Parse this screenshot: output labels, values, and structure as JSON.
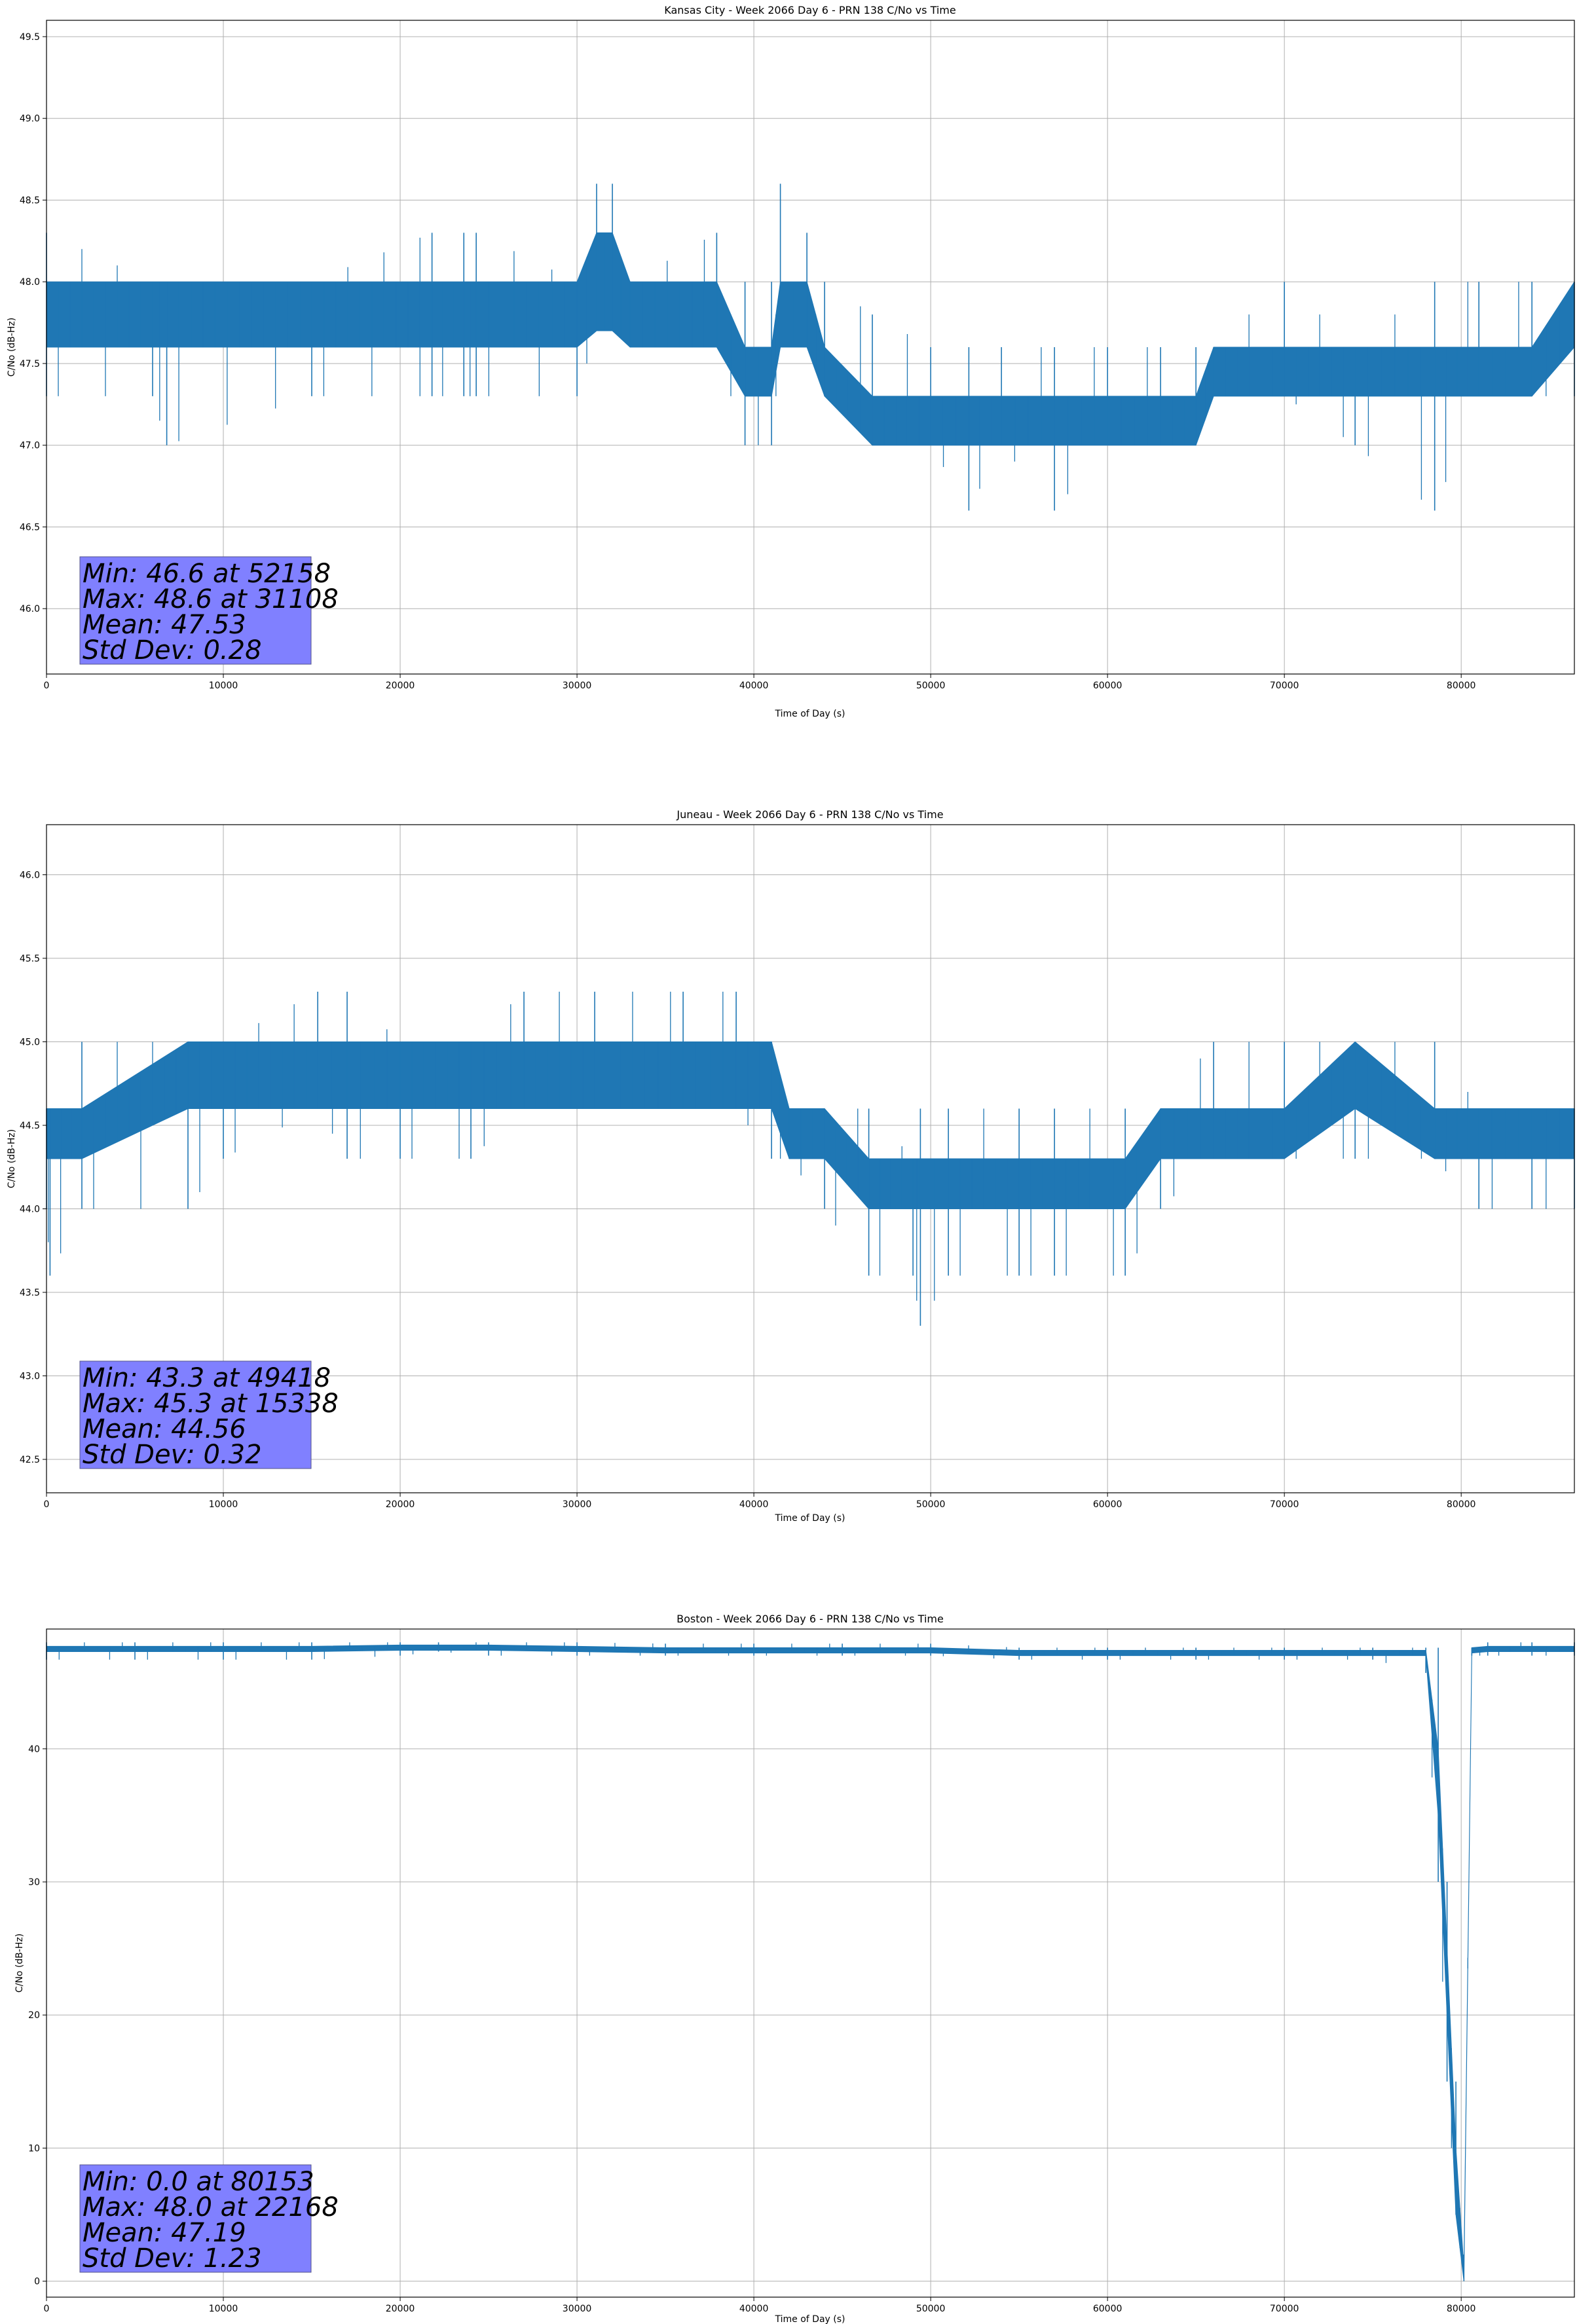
{
  "figure": {
    "line_color": "#1f77b4",
    "stats_box_color": "#8080ff",
    "grid": true
  },
  "chart_data": [
    {
      "type": "line",
      "title": "Kansas City - Week 2066 Day 6 - PRN 138 C/No vs Time",
      "xlabel": "Time of Day (s)",
      "ylabel": "C/No (dB-Hz)",
      "xlim": [
        0,
        86400
      ],
      "ylim": [
        45.6,
        49.6
      ],
      "xticks": [
        0,
        10000,
        20000,
        30000,
        40000,
        50000,
        60000,
        70000,
        80000
      ],
      "yticks": [
        46.0,
        46.5,
        47.0,
        47.5,
        48.0,
        48.5,
        49.0,
        49.5
      ],
      "ytick_labels": [
        "46.0",
        "46.5",
        "47.0",
        "47.5",
        "48.0",
        "48.5",
        "49.0",
        "49.5"
      ],
      "series": [
        {
          "x": [
            0,
            6000,
            6800,
            15000,
            21800,
            23600,
            24300,
            30000,
            31108,
            32000,
            33000,
            37900,
            39500,
            41000,
            41500,
            43000,
            44000,
            46700,
            50000,
            52158,
            54000,
            57000,
            60000,
            63000,
            65000,
            66000,
            70000,
            74000,
            78500,
            81000,
            84000,
            86400
          ],
          "y_low": [
            47.3,
            47.3,
            47.0,
            47.3,
            47.3,
            47.3,
            47.3,
            47.3,
            47.7,
            47.7,
            47.6,
            47.6,
            47.0,
            47.0,
            47.6,
            47.6,
            47.3,
            47.0,
            47.0,
            46.6,
            47.0,
            46.6,
            47.0,
            47.0,
            47.0,
            47.3,
            47.3,
            47.0,
            46.6,
            47.3,
            47.3,
            47.3
          ],
          "y_high": [
            48.3,
            48.0,
            48.0,
            48.0,
            48.3,
            48.3,
            48.3,
            48.0,
            48.6,
            48.6,
            48.0,
            48.3,
            48.0,
            48.0,
            48.6,
            48.3,
            48.0,
            47.8,
            47.6,
            47.6,
            47.6,
            47.6,
            47.6,
            47.6,
            47.6,
            47.6,
            48.0,
            47.6,
            48.0,
            48.0,
            48.0,
            48.0
          ],
          "y_band": [
            [
              47.6,
              48.0
            ],
            [
              47.6,
              48.0
            ],
            [
              47.6,
              48.0
            ],
            [
              47.6,
              48.0
            ],
            [
              47.6,
              48.0
            ],
            [
              47.6,
              48.0
            ],
            [
              47.6,
              48.0
            ],
            [
              47.6,
              48.0
            ],
            [
              47.7,
              48.3
            ],
            [
              47.7,
              48.3
            ],
            [
              47.6,
              48.0
            ],
            [
              47.6,
              48.0
            ],
            [
              47.3,
              47.6
            ],
            [
              47.3,
              47.6
            ],
            [
              47.6,
              48.0
            ],
            [
              47.6,
              48.0
            ],
            [
              47.3,
              47.6
            ],
            [
              47.0,
              47.3
            ],
            [
              47.0,
              47.3
            ],
            [
              47.0,
              47.3
            ],
            [
              47.0,
              47.3
            ],
            [
              47.0,
              47.3
            ],
            [
              47.0,
              47.3
            ],
            [
              47.0,
              47.3
            ],
            [
              47.0,
              47.3
            ],
            [
              47.3,
              47.6
            ],
            [
              47.3,
              47.6
            ],
            [
              47.3,
              47.6
            ],
            [
              47.3,
              47.6
            ],
            [
              47.3,
              47.6
            ],
            [
              47.3,
              47.6
            ],
            [
              47.6,
              48.0
            ]
          ]
        }
      ],
      "stats": [
        "Min: 46.6 at 52158",
        "Max: 48.6 at 31108",
        "Mean: 47.53",
        "Std Dev: 0.28"
      ]
    },
    {
      "type": "line",
      "title": "Juneau - Week 2066 Day 6 - PRN 138 C/No vs Time",
      "xlabel": "Time of Day (s)",
      "ylabel": "C/No (dB-Hz)",
      "xlim": [
        0,
        86400
      ],
      "ylim": [
        42.3,
        46.3
      ],
      "xticks": [
        0,
        10000,
        20000,
        30000,
        40000,
        50000,
        60000,
        70000,
        80000
      ],
      "yticks": [
        42.5,
        43.0,
        43.5,
        44.0,
        44.5,
        45.0,
        45.5,
        46.0
      ],
      "ytick_labels": [
        "42.5",
        "43.0",
        "43.5",
        "44.0",
        "44.5",
        "45.0",
        "45.5",
        "46.0"
      ],
      "series": [
        {
          "x": [
            0,
            200,
            2000,
            8000,
            10000,
            15338,
            17000,
            20000,
            24000,
            27000,
            31000,
            36000,
            39000,
            41000,
            42000,
            44000,
            46500,
            49000,
            49418,
            51000,
            55000,
            57000,
            61000,
            63000,
            66000,
            70000,
            74000,
            78500,
            81000,
            84000,
            86400
          ],
          "y_low": [
            44.0,
            43.6,
            44.0,
            44.0,
            44.3,
            44.6,
            44.3,
            44.3,
            44.3,
            44.6,
            44.6,
            44.6,
            44.6,
            44.3,
            44.3,
            44.0,
            43.6,
            43.6,
            43.3,
            43.6,
            43.6,
            43.6,
            43.6,
            44.0,
            44.3,
            44.3,
            44.3,
            44.3,
            44.0,
            44.0,
            44.0
          ],
          "y_high": [
            44.6,
            44.6,
            45.0,
            45.0,
            45.0,
            45.3,
            45.3,
            45.0,
            45.0,
            45.3,
            45.3,
            45.3,
            45.3,
            45.0,
            44.6,
            44.6,
            44.6,
            44.3,
            44.6,
            44.6,
            44.6,
            44.6,
            44.6,
            44.6,
            45.0,
            45.0,
            45.0,
            45.0,
            44.6,
            44.6,
            44.6
          ],
          "y_band": [
            [
              44.3,
              44.6
            ],
            [
              44.3,
              44.6
            ],
            [
              44.3,
              44.6
            ],
            [
              44.6,
              45.0
            ],
            [
              44.6,
              45.0
            ],
            [
              44.6,
              45.0
            ],
            [
              44.6,
              45.0
            ],
            [
              44.6,
              45.0
            ],
            [
              44.6,
              45.0
            ],
            [
              44.6,
              45.0
            ],
            [
              44.6,
              45.0
            ],
            [
              44.6,
              45.0
            ],
            [
              44.6,
              45.0
            ],
            [
              44.6,
              45.0
            ],
            [
              44.3,
              44.6
            ],
            [
              44.3,
              44.6
            ],
            [
              44.0,
              44.3
            ],
            [
              44.0,
              44.3
            ],
            [
              44.0,
              44.3
            ],
            [
              44.0,
              44.3
            ],
            [
              44.0,
              44.3
            ],
            [
              44.0,
              44.3
            ],
            [
              44.0,
              44.3
            ],
            [
              44.3,
              44.6
            ],
            [
              44.3,
              44.6
            ],
            [
              44.3,
              44.6
            ],
            [
              44.6,
              45.0
            ],
            [
              44.3,
              44.6
            ],
            [
              44.3,
              44.6
            ],
            [
              44.3,
              44.6
            ],
            [
              44.3,
              44.6
            ]
          ]
        }
      ],
      "stats": [
        "Min: 43.3 at 49418",
        "Max: 45.3 at 15338",
        "Mean: 44.56",
        "Std Dev: 0.32"
      ]
    },
    {
      "type": "line",
      "title": "Boston - Week 2066 Day 6 - PRN 138 C/No vs Time",
      "xlabel": "Time of Day (s)",
      "ylabel": "C/No (dB-Hz)",
      "xlim": [
        0,
        86400
      ],
      "ylim": [
        -1.2,
        49.0
      ],
      "xticks": [
        0,
        10000,
        20000,
        30000,
        40000,
        50000,
        60000,
        70000,
        80000
      ],
      "yticks": [
        0,
        10,
        20,
        30,
        40
      ],
      "ytick_labels": [
        "0",
        "10",
        "20",
        "30",
        "40"
      ],
      "series": [
        {
          "x": [
            0,
            5000,
            10000,
            15000,
            20000,
            22168,
            25000,
            30000,
            35000,
            40000,
            45000,
            50000,
            55000,
            60000,
            65000,
            70000,
            75000,
            78000,
            78700,
            79200,
            79700,
            80153,
            80600,
            81500,
            84000,
            86400
          ],
          "y_low": [
            46.7,
            46.7,
            46.7,
            46.7,
            47.0,
            47.3,
            47.0,
            47.0,
            47.0,
            47.0,
            47.0,
            47.0,
            46.7,
            46.7,
            46.7,
            46.7,
            46.7,
            45.7,
            30.0,
            15.0,
            5.0,
            0.0,
            47.0,
            47.0,
            47.0,
            47.0
          ],
          "y_high": [
            48.0,
            48.0,
            48.0,
            48.0,
            48.0,
            48.0,
            48.0,
            48.0,
            47.9,
            47.9,
            47.9,
            47.9,
            47.6,
            47.6,
            47.6,
            47.6,
            47.6,
            47.6,
            47.6,
            30.0,
            15.0,
            2.0,
            47.6,
            48.0,
            48.0,
            48.0
          ],
          "y_band": [
            [
              47.3,
              47.7
            ],
            [
              47.3,
              47.7
            ],
            [
              47.3,
              47.7
            ],
            [
              47.3,
              47.7
            ],
            [
              47.4,
              47.8
            ],
            [
              47.4,
              47.8
            ],
            [
              47.4,
              47.8
            ],
            [
              47.3,
              47.7
            ],
            [
              47.2,
              47.6
            ],
            [
              47.2,
              47.6
            ],
            [
              47.2,
              47.6
            ],
            [
              47.2,
              47.6
            ],
            [
              47.0,
              47.4
            ],
            [
              47.0,
              47.4
            ],
            [
              47.0,
              47.4
            ],
            [
              47.0,
              47.4
            ],
            [
              47.0,
              47.4
            ],
            [
              47.0,
              47.4
            ],
            [
              35.0,
              40.0
            ],
            [
              20.0,
              25.0
            ],
            [
              5.0,
              10.0
            ],
            [
              0.0,
              1.0
            ],
            [
              47.2,
              47.6
            ],
            [
              47.3,
              47.7
            ],
            [
              47.3,
              47.7
            ],
            [
              47.3,
              47.7
            ]
          ]
        }
      ],
      "stats": [
        "Min: 0.0 at 80153",
        "Max: 48.0 at 22168",
        "Mean: 47.19",
        "Std Dev: 1.23"
      ]
    }
  ]
}
